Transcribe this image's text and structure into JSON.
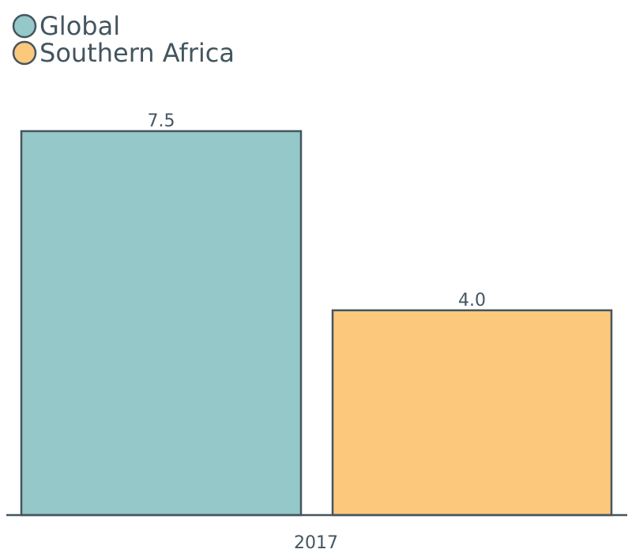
{
  "chart_data": {
    "type": "bar",
    "categories": [
      "2017"
    ],
    "series": [
      {
        "name": "Global",
        "values": [
          7.5
        ],
        "color": "#95c8c8"
      },
      {
        "name": "Southern Africa",
        "values": [
          4.0
        ],
        "color": "#fbc87c"
      }
    ],
    "value_labels": [
      "7.5",
      "4.0"
    ],
    "title": "",
    "xlabel": "",
    "ylabel": "",
    "ylim": [
      0,
      7.5
    ],
    "grid": false,
    "legend_position": "top-left",
    "outline_color": "#44555f"
  }
}
